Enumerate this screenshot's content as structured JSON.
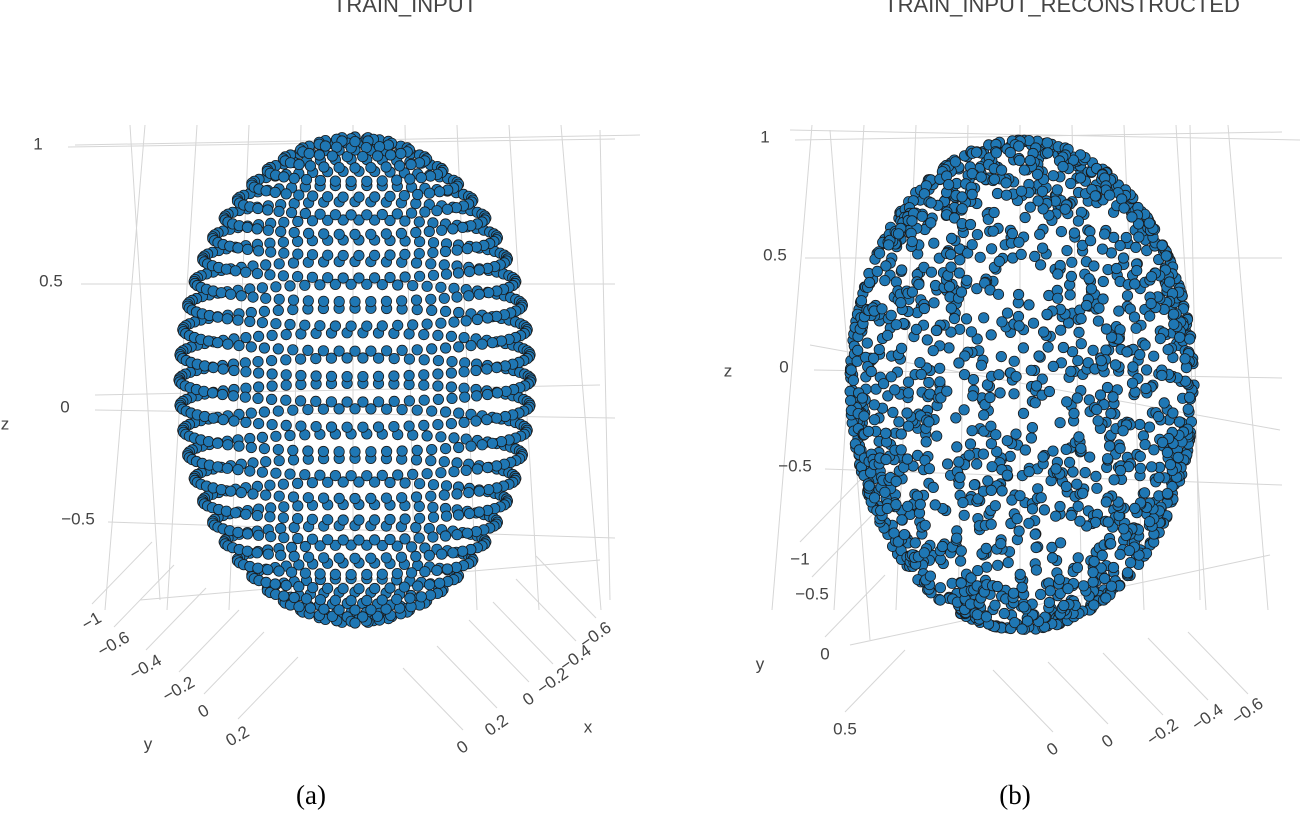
{
  "chart_data": [
    {
      "type": "scatter3d",
      "title": "TRAIN_INPUT",
      "caption": "(a)",
      "xlabel": "x",
      "ylabel": "y",
      "zlabel": "z",
      "zticks": [
        1,
        0.5,
        0,
        {
          "value": -0.5,
          "label": "−0.5"
        }
      ],
      "yticks": [
        {
          "value": -1,
          "label": "−1"
        },
        {
          "value": -0.6,
          "label": "−0.6"
        },
        {
          "value": -0.4,
          "label": "−0.4"
        },
        {
          "value": -0.2,
          "label": "−0.2"
        },
        0,
        0.2
      ],
      "xticks": [
        {
          "value": -0.6,
          "label": "−0.6"
        },
        {
          "value": -0.4,
          "label": "−0.4"
        },
        {
          "value": -0.2,
          "label": "−0.2"
        },
        0,
        0.2,
        0
      ],
      "color": "#1f77b4"
    },
    {
      "type": "scatter3d",
      "title": "TRAIN_INPUT_RECONSTRUCTED",
      "caption": "(b)",
      "ylabel": "y",
      "zlabel": "z",
      "zticks": [
        1,
        0.5,
        0,
        {
          "value": -0.5,
          "label": "−0.5"
        }
      ],
      "yticks": [
        {
          "value": -1,
          "label": "−1"
        },
        {
          "value": -0.5,
          "label": "−0.5"
        },
        0,
        0.5
      ],
      "xticks": [
        {
          "value": -0.6,
          "label": "−0.6"
        },
        {
          "value": -0.4,
          "label": "−0.4"
        },
        {
          "value": -0.2,
          "label": "−0.2"
        },
        0,
        0
      ],
      "color": "#1f77b4"
    }
  ]
}
